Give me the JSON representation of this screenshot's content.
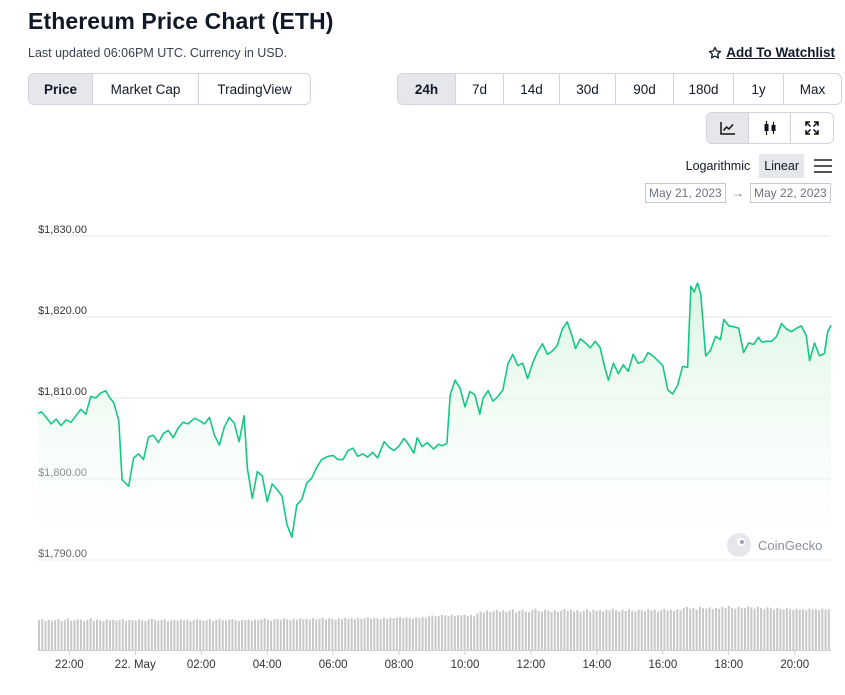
{
  "header": {
    "title": "Ethereum Price Chart (ETH)",
    "subtitle": "Last updated 06:06PM UTC. Currency in USD.",
    "watchlist_label": "Add To Watchlist"
  },
  "tabs_left": [
    {
      "label": "Price",
      "active": true
    },
    {
      "label": "Market Cap",
      "active": false
    },
    {
      "label": "TradingView",
      "active": false
    }
  ],
  "tabs_range": [
    {
      "label": "24h",
      "active": true
    },
    {
      "label": "7d",
      "active": false
    },
    {
      "label": "14d",
      "active": false
    },
    {
      "label": "30d",
      "active": false
    },
    {
      "label": "90d",
      "active": false
    },
    {
      "label": "180d",
      "active": false
    },
    {
      "label": "1y",
      "active": false
    },
    {
      "label": "Max",
      "active": false
    }
  ],
  "chart_modes": [
    {
      "icon": "line-chart-icon",
      "active": true
    },
    {
      "icon": "candlestick-icon",
      "active": false
    },
    {
      "icon": "expand-icon",
      "active": false
    }
  ],
  "scale": {
    "log_label": "Logarithmic",
    "linear_label": "Linear",
    "active": "linear"
  },
  "date_range": {
    "from": "May 21, 2023",
    "to": "May 22, 2023",
    "arrow": "→"
  },
  "watermark": "CoinGecko",
  "colors": {
    "line": "#16c784",
    "fill_top": "#d9f5e2",
    "volume": "#c8c8c8",
    "grid": "#e6e6e6"
  },
  "chart_data": {
    "type": "area",
    "ylim": [
      1788,
      1832
    ],
    "yticks": [
      {
        "label": "$1,830.00",
        "value": 1830
      },
      {
        "label": "$1,820.00",
        "value": 1820
      },
      {
        "label": "$1,810.00",
        "value": 1810
      },
      {
        "label": "$1,800.00",
        "value": 1800
      },
      {
        "label": "$1,790.00",
        "value": 1790
      }
    ],
    "xticks": [
      {
        "label": "22:00",
        "hour": 22
      },
      {
        "label": "22. May",
        "hour": 24
      },
      {
        "label": "02:00",
        "hour": 26
      },
      {
        "label": "04:00",
        "hour": 28
      },
      {
        "label": "06:00",
        "hour": 30
      },
      {
        "label": "08:00",
        "hour": 32
      },
      {
        "label": "10:00",
        "hour": 34
      },
      {
        "label": "12:00",
        "hour": 36
      },
      {
        "label": "14:00",
        "hour": 38
      },
      {
        "label": "16:00",
        "hour": 40
      },
      {
        "label": "18:00",
        "hour": 42
      },
      {
        "label": "20:00",
        "hour": 44
      }
    ],
    "x_range_hours": [
      21.05,
      45.1
    ],
    "series": [
      {
        "points": [
          [
            21.05,
            1808.1
          ],
          [
            21.15,
            1808.3
          ],
          [
            21.3,
            1807.6
          ],
          [
            21.45,
            1806.8
          ],
          [
            21.6,
            1807.4
          ],
          [
            21.75,
            1806.6
          ],
          [
            21.9,
            1807.3
          ],
          [
            22.05,
            1807.0
          ],
          [
            22.2,
            1807.8
          ],
          [
            22.35,
            1808.6
          ],
          [
            22.5,
            1808.0
          ],
          [
            22.65,
            1810.2
          ],
          [
            22.8,
            1810.0
          ],
          [
            22.95,
            1810.6
          ],
          [
            23.1,
            1810.9
          ],
          [
            23.2,
            1810.2
          ],
          [
            23.35,
            1809.4
          ],
          [
            23.5,
            1807.2
          ],
          [
            23.6,
            1799.9
          ],
          [
            23.8,
            1799.1
          ],
          [
            23.95,
            1802.6
          ],
          [
            24.1,
            1803.1
          ],
          [
            24.25,
            1802.4
          ],
          [
            24.4,
            1805.2
          ],
          [
            24.55,
            1805.4
          ],
          [
            24.7,
            1804.5
          ],
          [
            24.85,
            1805.6
          ],
          [
            25.0,
            1806.0
          ],
          [
            25.15,
            1805.1
          ],
          [
            25.3,
            1806.3
          ],
          [
            25.45,
            1807.0
          ],
          [
            25.6,
            1806.8
          ],
          [
            25.8,
            1807.5
          ],
          [
            25.95,
            1807.2
          ],
          [
            26.1,
            1806.8
          ],
          [
            26.25,
            1807.6
          ],
          [
            26.4,
            1805.4
          ],
          [
            26.55,
            1804.2
          ],
          [
            26.7,
            1806.4
          ],
          [
            26.85,
            1807.6
          ],
          [
            27.0,
            1806.9
          ],
          [
            27.15,
            1804.6
          ],
          [
            27.3,
            1807.8
          ],
          [
            27.4,
            1801.3
          ],
          [
            27.55,
            1797.6
          ],
          [
            27.7,
            1800.9
          ],
          [
            27.85,
            1800.4
          ],
          [
            28.0,
            1797.2
          ],
          [
            28.15,
            1799.4
          ],
          [
            28.3,
            1798.7
          ],
          [
            28.45,
            1797.9
          ],
          [
            28.6,
            1794.4
          ],
          [
            28.75,
            1792.8
          ],
          [
            28.9,
            1796.8
          ],
          [
            29.05,
            1797.5
          ],
          [
            29.2,
            1799.5
          ],
          [
            29.35,
            1800.1
          ],
          [
            29.5,
            1801.4
          ],
          [
            29.65,
            1802.4
          ],
          [
            29.85,
            1802.8
          ],
          [
            30.0,
            1802.9
          ],
          [
            30.15,
            1802.4
          ],
          [
            30.3,
            1802.4
          ],
          [
            30.45,
            1803.5
          ],
          [
            30.6,
            1803.8
          ],
          [
            30.75,
            1802.8
          ],
          [
            30.9,
            1803.1
          ],
          [
            31.05,
            1802.7
          ],
          [
            31.2,
            1803.3
          ],
          [
            31.35,
            1802.6
          ],
          [
            31.55,
            1804.6
          ],
          [
            31.7,
            1803.9
          ],
          [
            31.85,
            1803.5
          ],
          [
            32.0,
            1804.1
          ],
          [
            32.15,
            1805.0
          ],
          [
            32.3,
            1804.2
          ],
          [
            32.45,
            1803.2
          ],
          [
            32.55,
            1805.1
          ],
          [
            32.7,
            1804.0
          ],
          [
            32.85,
            1804.5
          ],
          [
            33.05,
            1803.7
          ],
          [
            33.2,
            1804.3
          ],
          [
            33.3,
            1804.1
          ],
          [
            33.45,
            1804.4
          ],
          [
            33.55,
            1810.4
          ],
          [
            33.7,
            1812.2
          ],
          [
            33.85,
            1811.2
          ],
          [
            34.0,
            1808.9
          ],
          [
            34.15,
            1810.8
          ],
          [
            34.3,
            1810.4
          ],
          [
            34.45,
            1808.0
          ],
          [
            34.55,
            1810.0
          ],
          [
            34.7,
            1810.9
          ],
          [
            34.85,
            1809.6
          ],
          [
            35.0,
            1810.2
          ],
          [
            35.15,
            1811.0
          ],
          [
            35.3,
            1814.2
          ],
          [
            35.45,
            1815.4
          ],
          [
            35.6,
            1814.0
          ],
          [
            35.75,
            1814.3
          ],
          [
            35.9,
            1812.4
          ],
          [
            36.05,
            1814.3
          ],
          [
            36.2,
            1815.7
          ],
          [
            36.35,
            1816.7
          ],
          [
            36.5,
            1815.4
          ],
          [
            36.65,
            1815.8
          ],
          [
            36.8,
            1816.5
          ],
          [
            36.95,
            1818.5
          ],
          [
            37.1,
            1819.4
          ],
          [
            37.25,
            1817.6
          ],
          [
            37.35,
            1816.1
          ],
          [
            37.5,
            1817.3
          ],
          [
            37.65,
            1816.8
          ],
          [
            37.8,
            1816.2
          ],
          [
            37.95,
            1817.0
          ],
          [
            38.1,
            1816.2
          ],
          [
            38.25,
            1813.6
          ],
          [
            38.35,
            1812.2
          ],
          [
            38.5,
            1814.3
          ],
          [
            38.65,
            1813.0
          ],
          [
            38.8,
            1814.1
          ],
          [
            38.95,
            1813.3
          ],
          [
            39.1,
            1815.4
          ],
          [
            39.25,
            1814.3
          ],
          [
            39.4,
            1814.5
          ],
          [
            39.55,
            1815.6
          ],
          [
            39.7,
            1815.2
          ],
          [
            39.85,
            1814.6
          ],
          [
            40.0,
            1814.0
          ],
          [
            40.15,
            1811.0
          ],
          [
            40.3,
            1810.5
          ],
          [
            40.45,
            1811.6
          ],
          [
            40.6,
            1813.9
          ],
          [
            40.75,
            1813.8
          ],
          [
            40.85,
            1823.8
          ],
          [
            40.95,
            1823.1
          ],
          [
            41.05,
            1824.2
          ],
          [
            41.15,
            1822.8
          ],
          [
            41.3,
            1815.2
          ],
          [
            41.45,
            1815.9
          ],
          [
            41.6,
            1817.6
          ],
          [
            41.75,
            1817.2
          ],
          [
            41.85,
            1819.7
          ],
          [
            42.0,
            1818.9
          ],
          [
            42.15,
            1818.8
          ],
          [
            42.3,
            1818.6
          ],
          [
            42.45,
            1815.6
          ],
          [
            42.6,
            1816.8
          ],
          [
            42.75,
            1816.6
          ],
          [
            42.9,
            1817.5
          ],
          [
            43.0,
            1816.9
          ],
          [
            43.15,
            1817.0
          ],
          [
            43.3,
            1817.0
          ],
          [
            43.45,
            1817.6
          ],
          [
            43.6,
            1819.2
          ],
          [
            43.75,
            1818.5
          ],
          [
            43.9,
            1818.2
          ],
          [
            44.05,
            1818.6
          ],
          [
            44.2,
            1818.9
          ],
          [
            44.35,
            1817.7
          ],
          [
            44.45,
            1814.6
          ],
          [
            44.6,
            1816.8
          ],
          [
            44.75,
            1815.2
          ],
          [
            44.9,
            1815.5
          ],
          [
            45.0,
            1818.2
          ],
          [
            45.1,
            1819.0
          ]
        ]
      }
    ],
    "volume": {
      "unit": "relative",
      "values": [
        0.62,
        0.64,
        0.6,
        0.63,
        0.61,
        0.62,
        0.64,
        0.6,
        0.63,
        0.65,
        0.61,
        0.62,
        0.64,
        0.63,
        0.6,
        0.62,
        0.66,
        0.61,
        0.63,
        0.62,
        0.6,
        0.64,
        0.62,
        0.63,
        0.61,
        0.62,
        0.64,
        0.6,
        0.63,
        0.62,
        0.61,
        0.64,
        0.62,
        0.6,
        0.63,
        0.65,
        0.62,
        0.61,
        0.63,
        0.64,
        0.6,
        0.62,
        0.63,
        0.61,
        0.64,
        0.62,
        0.63,
        0.6,
        0.62,
        0.64,
        0.63,
        0.61,
        0.62,
        0.64,
        0.6,
        0.63,
        0.65,
        0.62,
        0.61,
        0.63,
        0.64,
        0.62,
        0.6,
        0.63,
        0.62,
        0.64,
        0.61,
        0.63,
        0.62,
        0.64,
        0.66,
        0.63,
        0.61,
        0.64,
        0.65,
        0.63,
        0.66,
        0.64,
        0.62,
        0.65,
        0.63,
        0.66,
        0.64,
        0.65,
        0.63,
        0.66,
        0.64,
        0.65,
        0.67,
        0.64,
        0.66,
        0.65,
        0.63,
        0.66,
        0.64,
        0.67,
        0.65,
        0.66,
        0.64,
        0.67,
        0.65,
        0.66,
        0.68,
        0.65,
        0.67,
        0.66,
        0.64,
        0.67,
        0.65,
        0.68,
        0.66,
        0.67,
        0.69,
        0.66,
        0.68,
        0.67,
        0.65,
        0.68,
        0.66,
        0.69,
        0.67,
        0.7,
        0.72,
        0.7,
        0.71,
        0.73,
        0.72,
        0.7,
        0.74,
        0.71,
        0.73,
        0.72,
        0.74,
        0.71,
        0.73,
        0.7,
        0.76,
        0.8,
        0.78,
        0.82,
        0.79,
        0.81,
        0.84,
        0.8,
        0.83,
        0.79,
        0.82,
        0.85,
        0.78,
        0.81,
        0.84,
        0.8,
        0.79,
        0.83,
        0.86,
        0.81,
        0.8,
        0.84,
        0.82,
        0.79,
        0.83,
        0.8,
        0.82,
        0.85,
        0.81,
        0.84,
        0.8,
        0.83,
        0.79,
        0.82,
        0.85,
        0.8,
        0.84,
        0.81,
        0.83,
        0.8,
        0.84,
        0.82,
        0.86,
        0.83,
        0.8,
        0.84,
        0.81,
        0.85,
        0.82,
        0.8,
        0.84,
        0.83,
        0.81,
        0.85,
        0.82,
        0.84,
        0.8,
        0.83,
        0.86,
        0.82,
        0.84,
        0.81,
        0.85,
        0.83,
        0.88,
        0.9,
        0.86,
        0.88,
        0.84,
        0.9,
        0.87,
        0.86,
        0.89,
        0.85,
        0.88,
        0.86,
        0.9,
        0.87,
        0.92,
        0.88,
        0.86,
        0.9,
        0.88,
        0.87,
        0.91,
        0.89,
        0.86,
        0.9,
        0.88,
        0.85,
        0.89,
        0.87,
        0.84,
        0.88,
        0.86,
        0.84,
        0.87,
        0.85,
        0.83,
        0.86,
        0.84,
        0.85,
        0.83,
        0.86,
        0.84,
        0.85,
        0.83,
        0.86,
        0.84,
        0.85
      ]
    }
  }
}
